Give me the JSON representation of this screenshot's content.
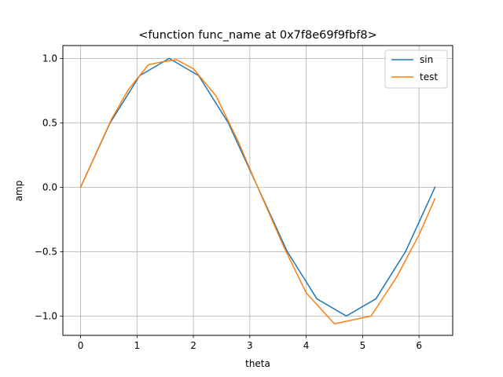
{
  "chart_data": {
    "type": "line",
    "title": "<function func_name at 0x7f8e69f9fbf8>",
    "xlabel": "theta",
    "ylabel": "amp",
    "xlim": [
      -0.314,
      6.597
    ],
    "ylim": [
      -1.15,
      1.1
    ],
    "xticks": [
      0,
      1,
      2,
      3,
      4,
      5,
      6
    ],
    "xtick_labels": [
      "0",
      "1",
      "2",
      "3",
      "4",
      "5",
      "6"
    ],
    "yticks": [
      -1.0,
      -0.5,
      0.0,
      0.5,
      1.0
    ],
    "ytick_labels": [
      "−1.0",
      "−0.5",
      "0.0",
      "0.5",
      "1.0"
    ],
    "grid": true,
    "legend_position": "upper right",
    "series": [
      {
        "name": "sin",
        "color": "#1f77b4",
        "x": [
          0.0,
          0.524,
          1.047,
          1.571,
          2.094,
          2.618,
          3.142,
          3.665,
          4.189,
          4.712,
          5.236,
          5.76,
          6.283
        ],
        "y": [
          0.0,
          0.5,
          0.866,
          1.0,
          0.866,
          0.5,
          0.0,
          -0.5,
          -0.866,
          -1.0,
          -0.866,
          -0.5,
          0.0
        ]
      },
      {
        "name": "test",
        "color": "#ff7f0e",
        "x": [
          0.0,
          0.55,
          0.85,
          1.2,
          1.4,
          1.7,
          2.0,
          2.4,
          2.8,
          3.2,
          3.6,
          4.0,
          4.5,
          5.15,
          5.6,
          6.0,
          6.28
        ],
        "y": [
          0.0,
          0.53,
          0.76,
          0.95,
          0.97,
          0.99,
          0.92,
          0.71,
          0.35,
          -0.06,
          -0.46,
          -0.82,
          -1.06,
          -1.0,
          -0.7,
          -0.37,
          -0.09
        ]
      }
    ]
  }
}
